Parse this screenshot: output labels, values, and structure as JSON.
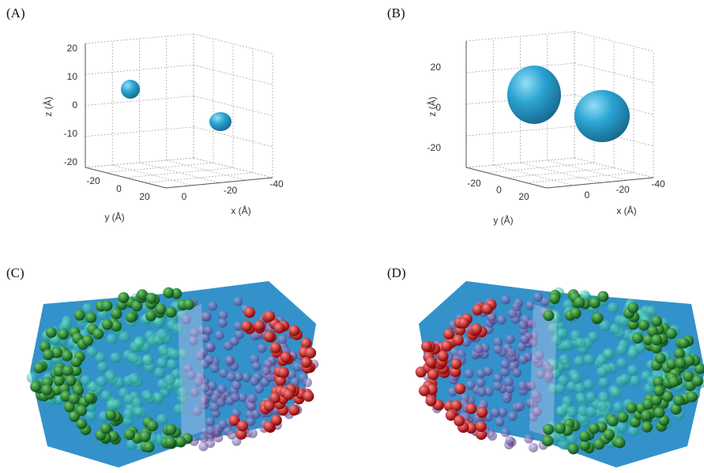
{
  "panels": [
    {
      "label": "(A)",
      "z_label": "z (Å)",
      "y_label": "y (Å)",
      "x_label": "x (Å)",
      "z_ticks": [
        20,
        10,
        0,
        -10,
        -20
      ],
      "y_ticks": [
        -20,
        0,
        20
      ],
      "x_ticks": [
        0,
        -20,
        -40
      ]
    },
    {
      "label": "(B)",
      "z_label": "z (Å)",
      "y_label": "y (Å)",
      "x_label": "x (Å)",
      "z_ticks": [
        20,
        0,
        -20
      ],
      "y_ticks": [
        -20,
        0,
        20
      ],
      "x_ticks": [
        0,
        -20,
        -40
      ]
    },
    {
      "label": "(C)"
    },
    {
      "label": "(D)"
    }
  ]
}
